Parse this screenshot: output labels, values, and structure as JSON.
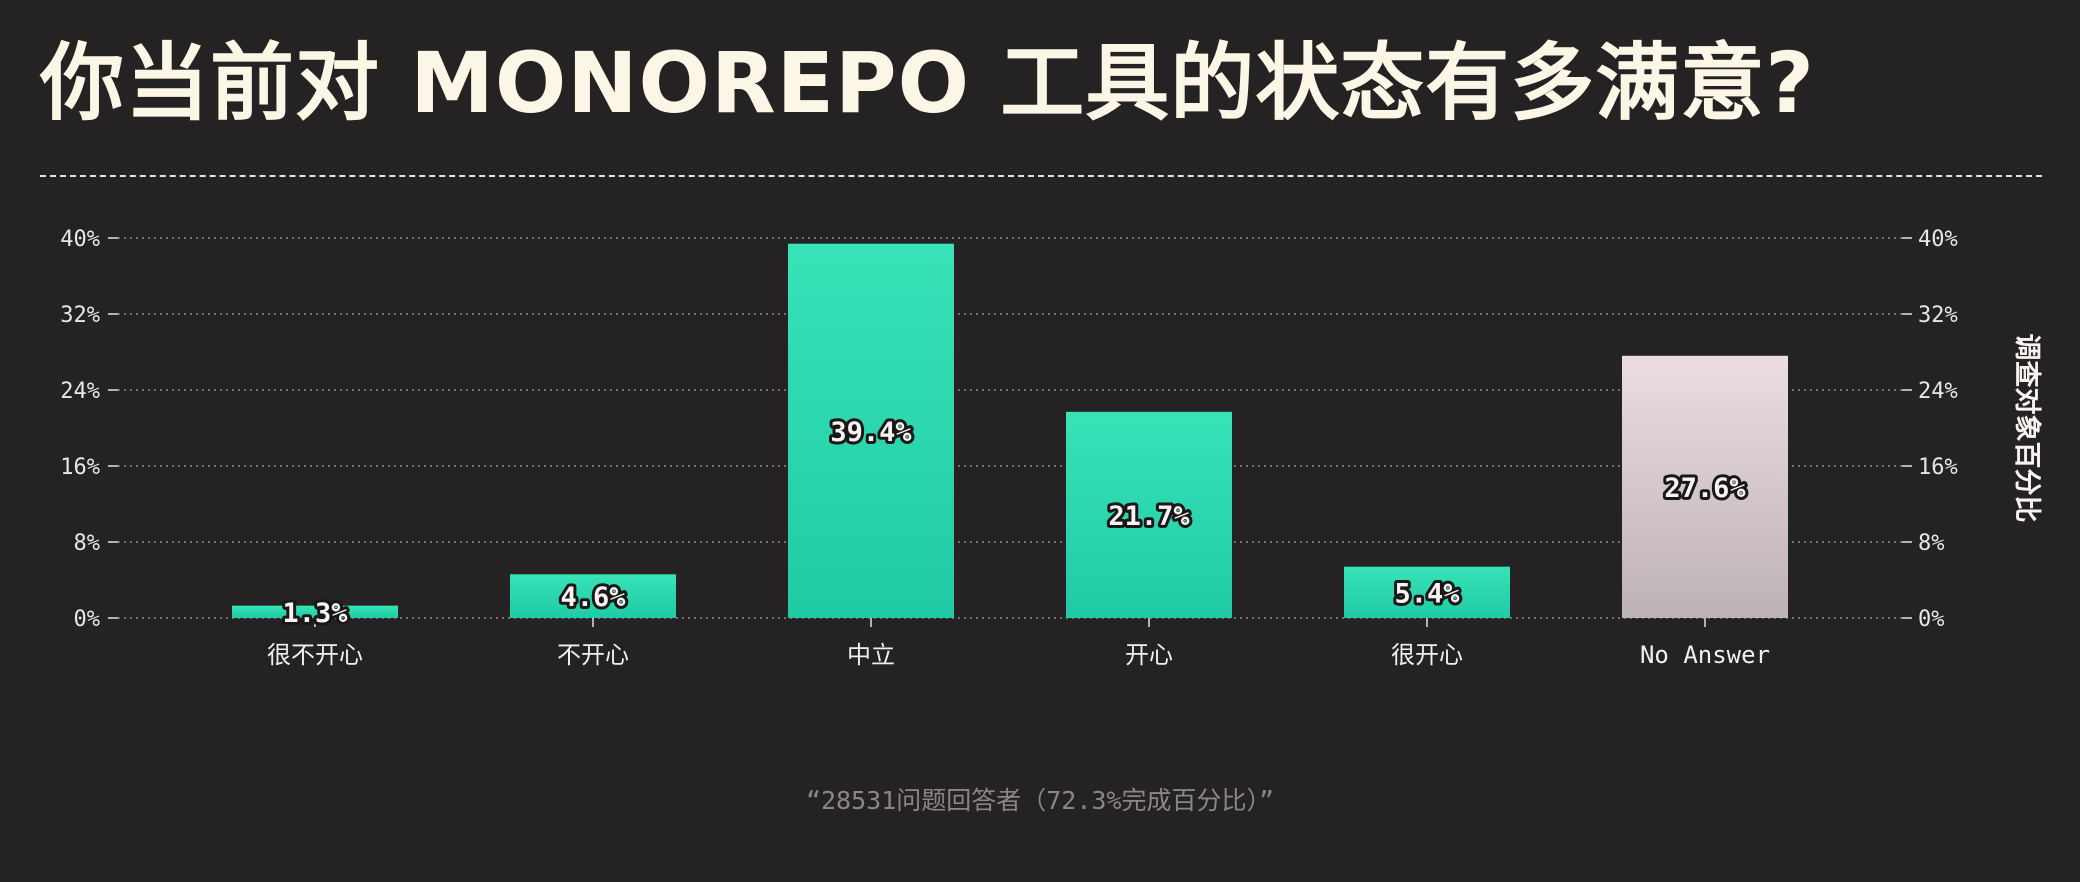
{
  "colors": {
    "background": "#252223",
    "bar_top": "#38e3b8",
    "bar_bottom": "#20caa4",
    "na_top": "#ecdde2",
    "na_bottom": "#bdb2b6",
    "title": "#fcf6e6"
  },
  "chart_data": {
    "type": "bar",
    "title": "你当前对 MONOREPO 工具的状态有多满意?",
    "xlabel": "",
    "ylabel": "调查对象百分比",
    "categories": [
      "很不开心",
      "不开心",
      "中立",
      "开心",
      "很开心",
      "No Answer"
    ],
    "values": [
      1.3,
      4.6,
      39.4,
      21.7,
      5.4,
      27.6
    ],
    "value_labels": [
      "1.3%",
      "4.6%",
      "39.4%",
      "21.7%",
      "5.4%",
      "27.6%"
    ],
    "yticks": [
      "0%",
      "8%",
      "16%",
      "24%",
      "32%",
      "40%"
    ],
    "ylim": [
      0,
      40
    ],
    "grid": true,
    "y_axis_both_sides": true,
    "highlight_last_category": true
  },
  "footnote": "“28531问题回答者（72.3%完成百分比）”"
}
